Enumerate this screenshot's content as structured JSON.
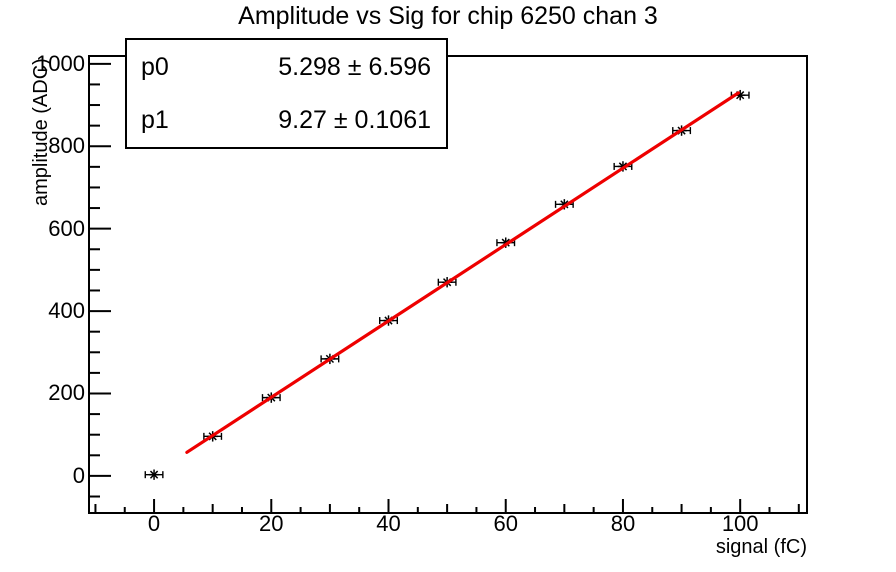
{
  "page": {
    "background": "#ffffff",
    "foreground": "#000000"
  },
  "title": "Amplitude vs Sig for chip 6250 chan 3",
  "stats_box": {
    "rows": [
      {
        "label": "p0",
        "value": "5.298 ± 6.596"
      },
      {
        "label": "p1",
        "value": "9.27 ± 0.1061"
      }
    ]
  },
  "axes": {
    "x_title": "signal (fC)",
    "y_title": "amplitude (ADC)"
  },
  "chart_data": {
    "type": "scatter",
    "title": "Amplitude vs Sig for chip 6250 chan 3",
    "xlabel": "signal (fC)",
    "ylabel": "amplitude (ADC)",
    "xlim": [
      -11.1,
      111.4
    ],
    "ylim": [
      -90,
      1019
    ],
    "x_ticks": [
      0,
      20,
      40,
      60,
      80,
      100
    ],
    "x_secondary_step": 10,
    "x_minor_step": 5,
    "y_ticks": [
      0,
      200,
      400,
      600,
      800,
      1000
    ],
    "y_minor_step": 50,
    "grid": false,
    "legend": false,
    "series": [
      {
        "name": "measured amplitude",
        "type": "scatter",
        "marker": "star",
        "color": "#000000",
        "x": [
          0,
          10,
          20,
          30,
          40,
          50,
          60,
          70,
          80,
          90,
          100
        ],
        "y": [
          3,
          96,
          190,
          284,
          377,
          470,
          566,
          659,
          751,
          838,
          924
        ],
        "x_error": 1.5
      },
      {
        "name": "linear fit",
        "type": "line",
        "color": "#ee0000",
        "p0": 5.298,
        "p1": 9.27,
        "x_start": 5.6,
        "x_end": 99.7
      }
    ]
  }
}
